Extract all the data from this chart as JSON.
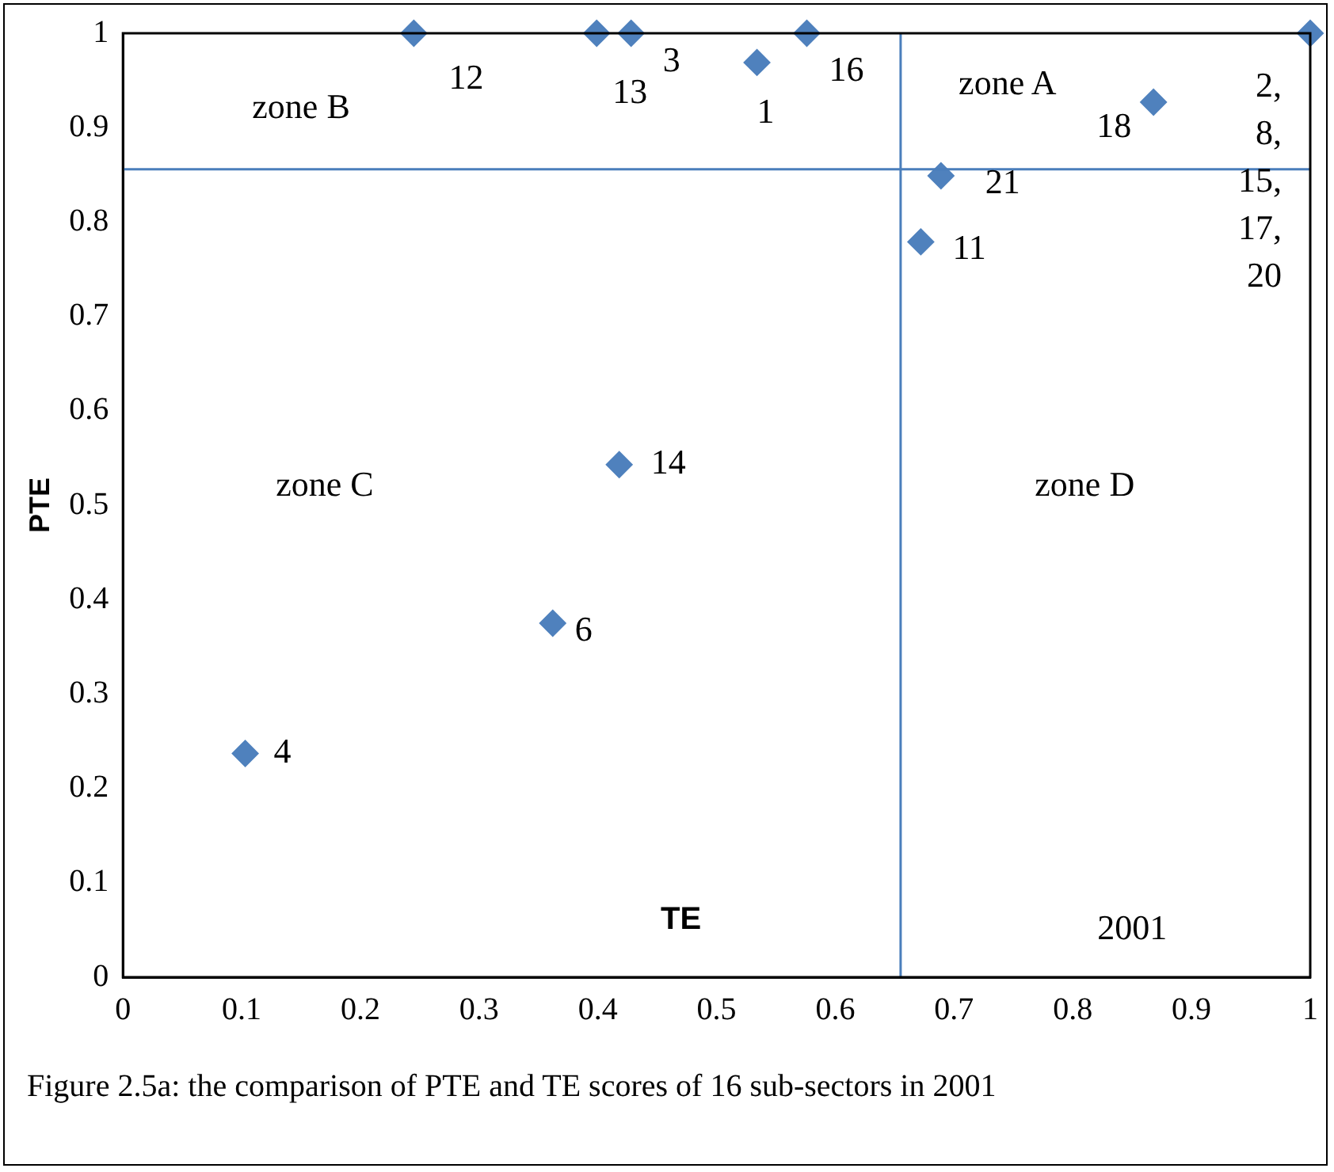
{
  "chart_data": {
    "type": "scatter",
    "xlabel": "TE",
    "ylabel": "PTE",
    "xlim": [
      0,
      1
    ],
    "ylim": [
      0,
      1
    ],
    "xticks": [
      0,
      0.1,
      0.2,
      0.3,
      0.4,
      0.5,
      0.6,
      0.7,
      0.8,
      0.9,
      1
    ],
    "yticks": [
      0,
      0.1,
      0.2,
      0.3,
      0.4,
      0.5,
      0.6,
      0.7,
      0.8,
      0.9,
      1
    ],
    "grid": false,
    "legend": false,
    "marker": "diamond",
    "series": [
      {
        "color": "#4f81bd",
        "x": [
          0.245,
          0.399,
          0.428,
          0.534,
          0.576,
          0.689,
          0.672,
          0.868,
          1,
          0.418,
          0.362,
          0.103
        ],
        "values": [
          1,
          1,
          1,
          0.969,
          1,
          0.849,
          0.779,
          0.927,
          1,
          0.543,
          0.375,
          0.237
        ]
      }
    ],
    "ref_lines": [
      {
        "axis": "y",
        "value": 0.856,
        "color": "#4a7ebb"
      },
      {
        "axis": "x",
        "value": 0.655,
        "color": "#4a7ebb"
      }
    ],
    "annotations": [
      {
        "text": "12",
        "x": 0.245,
        "y": 1
      },
      {
        "text": "13",
        "x": 0.399,
        "y": 1
      },
      {
        "text": "3",
        "x": 0.428,
        "y": 1
      },
      {
        "text": "1",
        "x": 0.534,
        "y": 0.969
      },
      {
        "text": "16",
        "x": 0.576,
        "y": 1
      },
      {
        "text": "21",
        "x": 0.689,
        "y": 0.849
      },
      {
        "text": "11",
        "x": 0.672,
        "y": 0.779
      },
      {
        "text": "18",
        "x": 0.868,
        "y": 0.927
      },
      {
        "text": "2,\n8,\n15,\n17,\n20",
        "x": 1,
        "y": 1
      },
      {
        "text": "14",
        "x": 0.418,
        "y": 0.543
      },
      {
        "text": "6",
        "x": 0.362,
        "y": 0.375
      },
      {
        "text": "4",
        "x": 0.103,
        "y": 0.237
      },
      "zone A",
      "zone B",
      "zone C",
      "zone D",
      "2001",
      "Figure 2.5a: the comparison of PTE and TE scores of 16 sub-sectors in 2001"
    ]
  }
}
